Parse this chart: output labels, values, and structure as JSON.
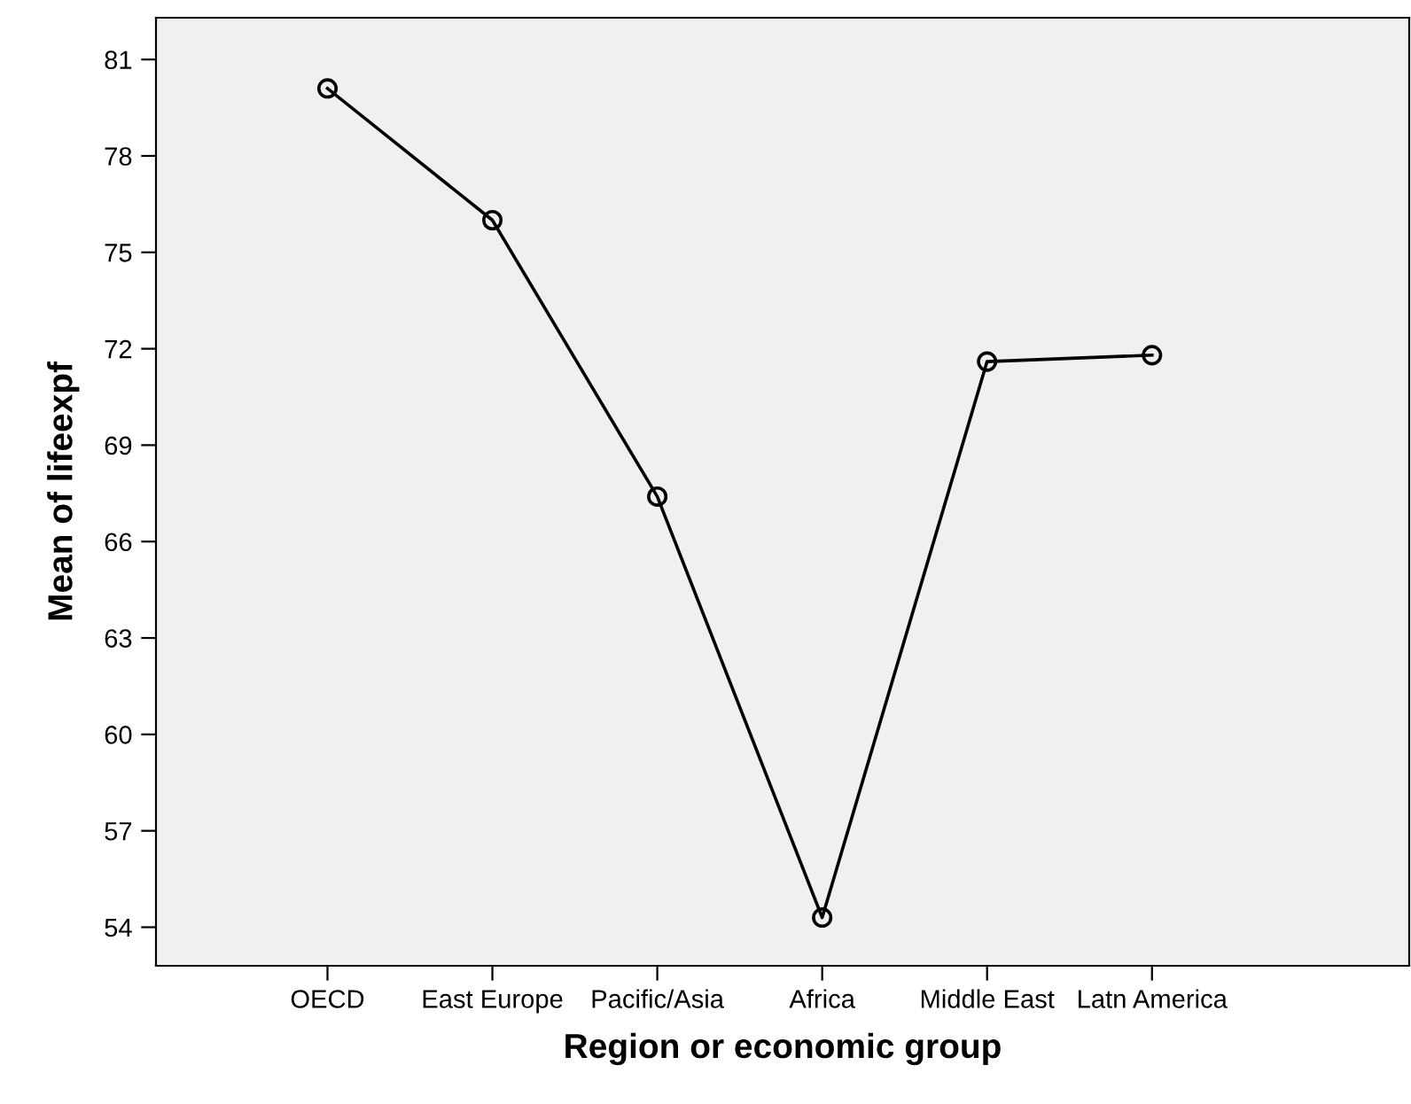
{
  "chart_data": {
    "type": "line",
    "xlabel": "Region or economic group",
    "ylabel": "Mean of lifeexpf",
    "categories": [
      "OECD",
      "East Europe",
      "Pacific/Asia",
      "Africa",
      "Middle East",
      "Latn America"
    ],
    "series": [
      {
        "color": "#000000",
        "values": [
          80.1,
          76.0,
          67.4,
          54.3,
          71.6,
          71.8
        ]
      }
    ],
    "ylim": [
      52.8,
      82.3
    ],
    "yticks": [
      54,
      57,
      60,
      63,
      66,
      69,
      72,
      75,
      78,
      81
    ],
    "marker": "circle",
    "line_style": "solid",
    "grid": false,
    "legend": false
  }
}
